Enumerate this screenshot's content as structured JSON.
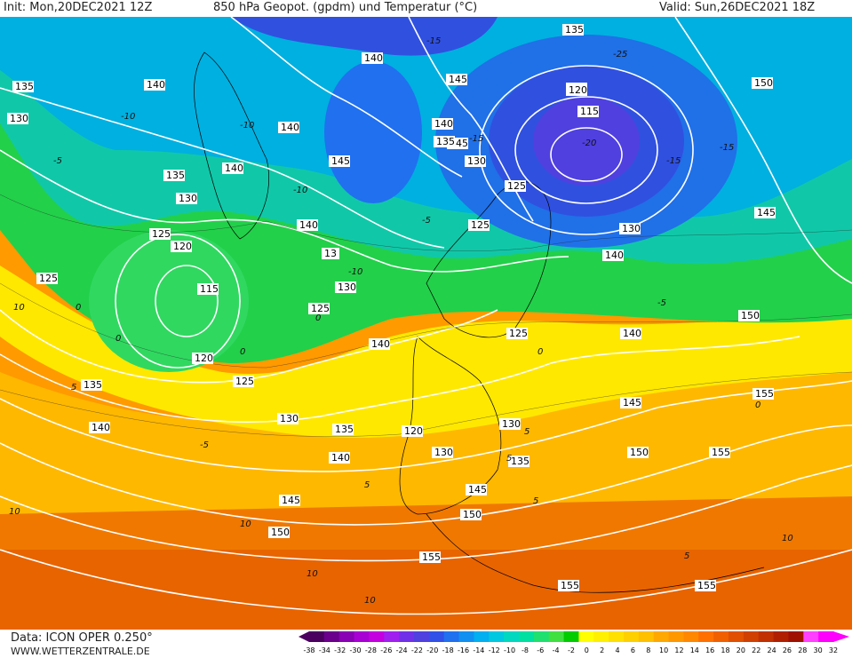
{
  "header": {
    "init": "Init: Mon,20DEC2021 12Z",
    "title": "850 hPa Geopot. (gpdm) und Temperatur (°C)",
    "valid": "Valid: Sun,26DEC2021 18Z"
  },
  "footer": {
    "data_source": "Data: ICON OPER 0.250°",
    "website": "WWW.WETTERZENTRALE.DE"
  },
  "legend": {
    "ticks": [
      "-38",
      "-34",
      "-32",
      "-30",
      "-28",
      "-26",
      "-24",
      "-22",
      "-20",
      "-18",
      "-16",
      "-14",
      "-12",
      "-10",
      "-8",
      "-6",
      "-4",
      "-2",
      "0",
      "2",
      "4",
      "6",
      "8",
      "10",
      "12",
      "14",
      "16",
      "18",
      "20",
      "22",
      "24",
      "26",
      "28",
      "30",
      "32"
    ],
    "colors": [
      "#4b0060",
      "#6a008c",
      "#8a00b4",
      "#a800d4",
      "#c400e0",
      "#a020f0",
      "#7030e8",
      "#5040e0",
      "#3050e8",
      "#2070f0",
      "#1090f0",
      "#00b0f0",
      "#00c8e0",
      "#00d8c0",
      "#00e0a0",
      "#20e070",
      "#40e040",
      "#00cc00",
      "#ffff00",
      "#fff000",
      "#ffe000",
      "#ffd000",
      "#ffc000",
      "#ffa800",
      "#ff9800",
      "#ff8800",
      "#ff7000",
      "#f06000",
      "#e05000",
      "#d04000",
      "#c03000",
      "#b02000",
      "#a01000",
      "#ff40ff",
      "#ff00ff"
    ]
  },
  "map": {
    "isohypse_labels": [
      "135",
      "140",
      "145",
      "150",
      "140",
      "140",
      "130",
      "140",
      "145",
      "140",
      "135",
      "130",
      "120",
      "115",
      "125",
      "130",
      "140",
      "145",
      "150",
      "135",
      "130",
      "125",
      "125",
      "120",
      "115",
      "130",
      "130",
      "125",
      "125",
      "120",
      "140",
      "130",
      "120",
      "125",
      "130",
      "135",
      "140",
      "135",
      "140",
      "130",
      "145",
      "150",
      "145",
      "135",
      "140",
      "145",
      "150",
      "155",
      "155",
      "150",
      "155",
      "155",
      "145",
      "150",
      "155",
      "13",
      "125",
      "135",
      "140"
    ],
    "temperature_labels": [
      "-15",
      "-10",
      "-5",
      "0",
      "5",
      "-10",
      "-15",
      "-20",
      "-25",
      "0",
      "5",
      "10",
      "10",
      "5",
      "0",
      "-5",
      "10",
      "-5",
      "0",
      "5",
      "10",
      "-5",
      "-10",
      "-15",
      "5",
      "10",
      "0",
      "10",
      "-10",
      "-15",
      "0",
      "5"
    ]
  }
}
